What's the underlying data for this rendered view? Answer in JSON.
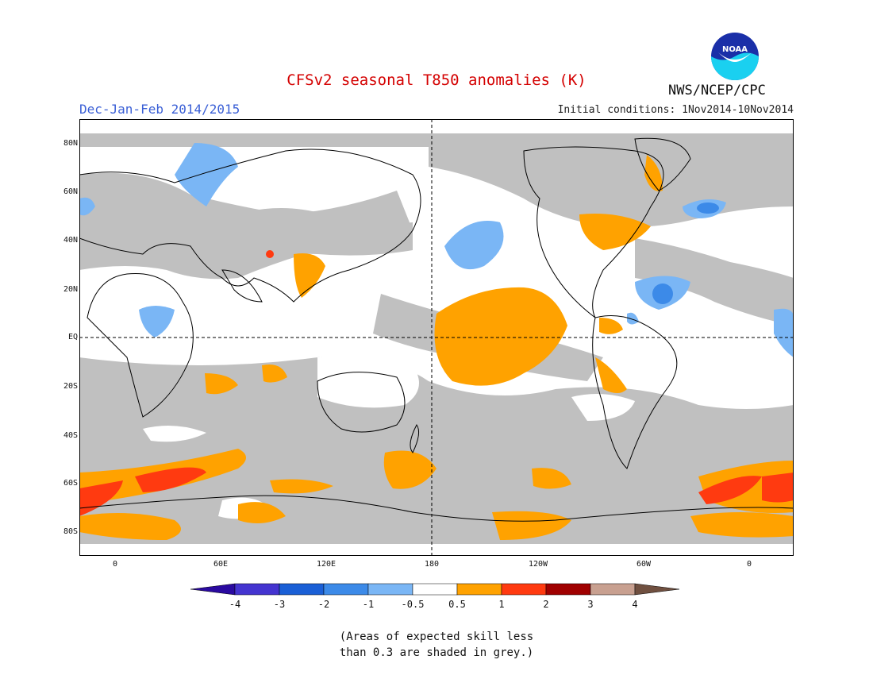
{
  "title": "CFSv2 seasonal T850 anomalies (K)",
  "season": "Dec-Jan-Feb 2014/2015",
  "initial_conditions": "Initial conditions: 1Nov2014-10Nov2014",
  "agency": "NWS/NCEP/CPC",
  "logo_text": "NOAA",
  "lat_labels": [
    "80N",
    "60N",
    "40N",
    "20N",
    "EQ",
    "20S",
    "40S",
    "60S",
    "80S"
  ],
  "lon_labels": [
    "0",
    "60E",
    "120E",
    "180",
    "120W",
    "60W",
    "0"
  ],
  "legend": {
    "labels": [
      "-4",
      "-3",
      "-2",
      "-1",
      "-0.5",
      "0.5",
      "1",
      "2",
      "3",
      "4"
    ],
    "colors": [
      "#2a0aa0",
      "#4434d0",
      "#1a5fd6",
      "#3c8ae8",
      "#7ab6f5",
      "#ffffff",
      "#ffa200",
      "#ff3a10",
      "#a00000",
      "#c8a090",
      "#705040"
    ]
  },
  "map_colors": {
    "skill_grey": "#c0c0c0",
    "ocean": "#ffffff",
    "coast": "#000000"
  },
  "note_line1": "(Areas of expected skill less",
  "note_line2": "than 0.3 are shaded in grey.)"
}
